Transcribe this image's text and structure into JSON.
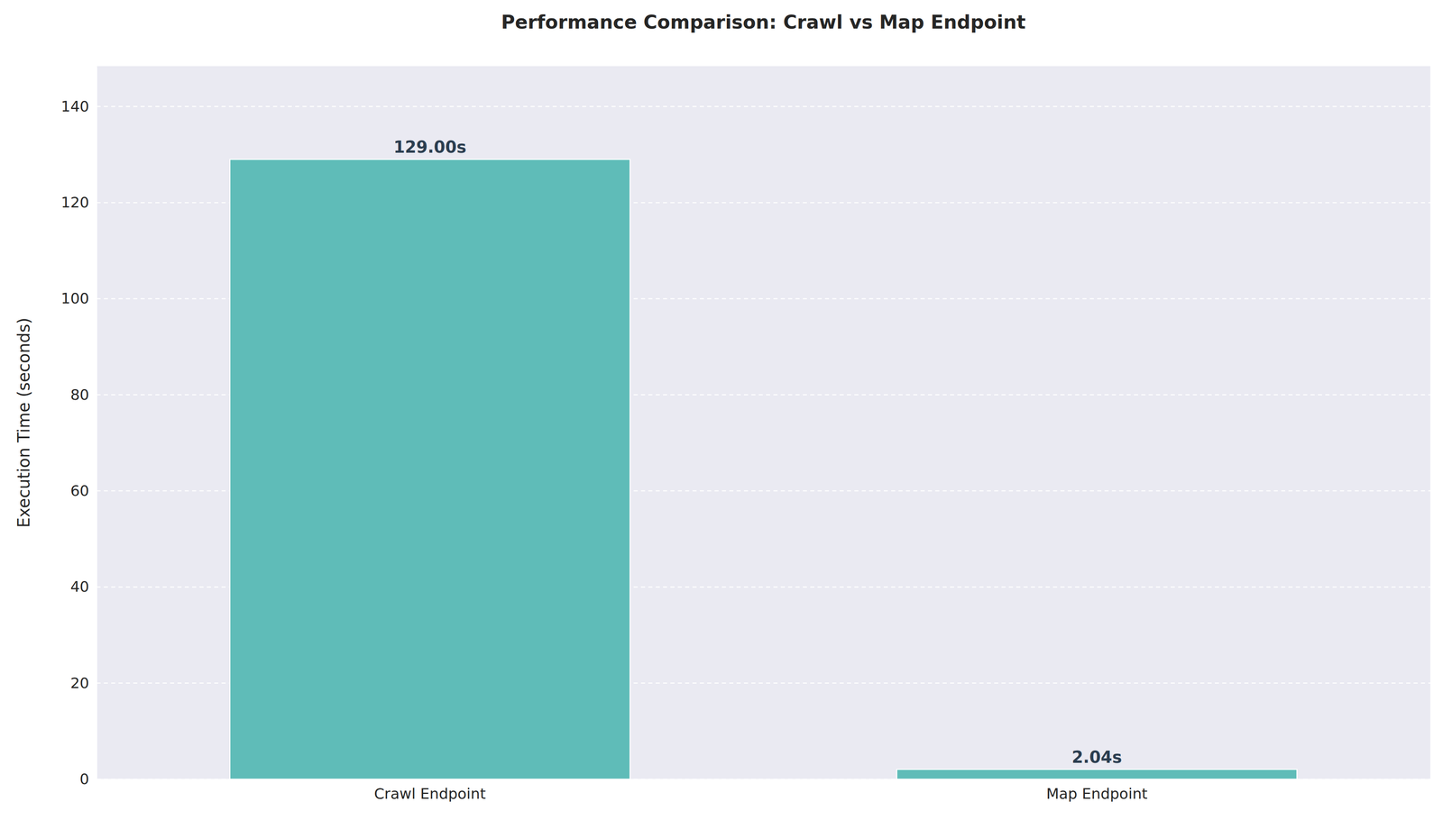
{
  "chart_data": {
    "type": "bar",
    "title": "Performance Comparison: Crawl vs Map Endpoint",
    "y_label": "Execution Time (seconds)",
    "categories": [
      "Crawl Endpoint",
      "Map Endpoint"
    ],
    "values": [
      129.0,
      2.04
    ],
    "value_labels": [
      "129.00s",
      "2.04s"
    ],
    "data_labels": true,
    "color": "#5fbcb8",
    "ylim": [
      0,
      148.4
    ],
    "yticks": [
      0,
      20,
      40,
      60,
      80,
      100,
      120,
      140
    ],
    "grid": true
  }
}
